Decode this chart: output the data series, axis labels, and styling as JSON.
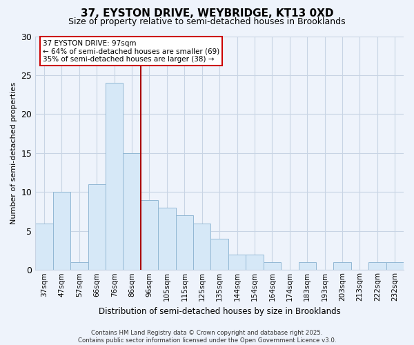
{
  "title_line1": "37, EYSTON DRIVE, WEYBRIDGE, KT13 0XD",
  "title_line2": "Size of property relative to semi-detached houses in Brooklands",
  "xlabel": "Distribution of semi-detached houses by size in Brooklands",
  "ylabel": "Number of semi-detached properties",
  "categories": [
    "37sqm",
    "47sqm",
    "57sqm",
    "66sqm",
    "76sqm",
    "86sqm",
    "96sqm",
    "105sqm",
    "115sqm",
    "125sqm",
    "135sqm",
    "144sqm",
    "154sqm",
    "164sqm",
    "174sqm",
    "183sqm",
    "193sqm",
    "203sqm",
    "213sqm",
    "222sqm",
    "232sqm"
  ],
  "values": [
    6,
    10,
    1,
    11,
    24,
    15,
    9,
    8,
    7,
    6,
    4,
    2,
    2,
    1,
    0,
    1,
    0,
    1,
    0,
    1,
    1
  ],
  "bar_color": "#d6e8f7",
  "bar_edge_color": "#92b8d4",
  "vline_after_index": 5,
  "vline_color": "#aa0000",
  "annotation_box_title": "37 EYSTON DRIVE: 97sqm",
  "annotation_line1": "← 64% of semi-detached houses are smaller (69)",
  "annotation_line2": "35% of semi-detached houses are larger (38) →",
  "annotation_box_edge_color": "#cc0000",
  "ylim": [
    0,
    30
  ],
  "yticks": [
    0,
    5,
    10,
    15,
    20,
    25,
    30
  ],
  "footer_line1": "Contains HM Land Registry data © Crown copyright and database right 2025.",
  "footer_line2": "Contains public sector information licensed under the Open Government Licence v3.0.",
  "bg_color": "#eef3fb",
  "grid_color": "#c8d4e4",
  "title_fontsize": 11,
  "subtitle_fontsize": 9,
  "xlabel_fontsize": 8.5,
  "ylabel_fontsize": 8,
  "tick_fontsize": 7.5
}
